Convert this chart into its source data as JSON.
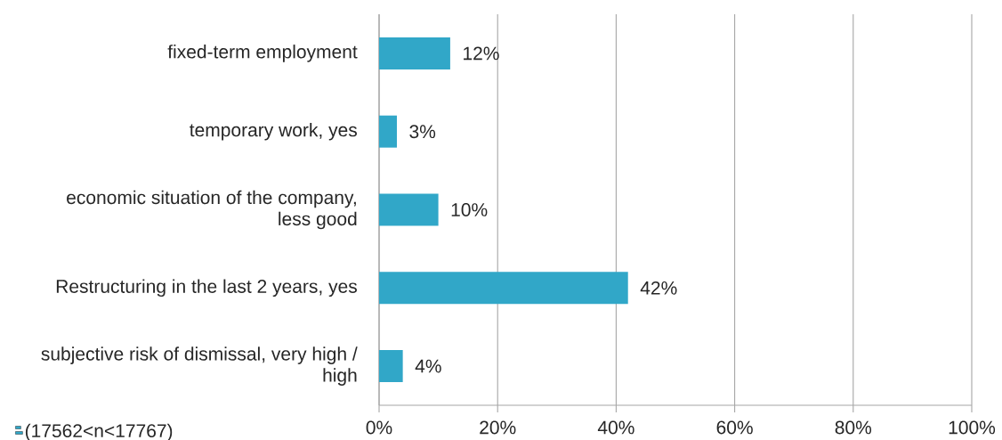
{
  "chart_data": {
    "type": "bar",
    "orientation": "horizontal",
    "categories": [
      "fixed-term employment",
      "temporary work, yes",
      "economic situation of the company, less good",
      "Restructuring in the last 2 years, yes",
      "subjective risk of dismissal, very high / high"
    ],
    "series": [
      {
        "name": "(17562<n<17767)",
        "color": "#31a7c8",
        "values": [
          12,
          3,
          10,
          42,
          4
        ],
        "value_labels": [
          "12%",
          "3%",
          "10%",
          "42%",
          "4%"
        ]
      }
    ],
    "xlim": [
      0,
      100
    ],
    "xticks": [
      {
        "value": 0,
        "label": "0%"
      },
      {
        "value": 20,
        "label": "20%"
      },
      {
        "value": 40,
        "label": "40%"
      },
      {
        "value": 60,
        "label": "60%"
      },
      {
        "value": 80,
        "label": "80%"
      },
      {
        "value": 100,
        "label": "100%"
      }
    ],
    "grid": "x",
    "legend": "bottom left"
  }
}
